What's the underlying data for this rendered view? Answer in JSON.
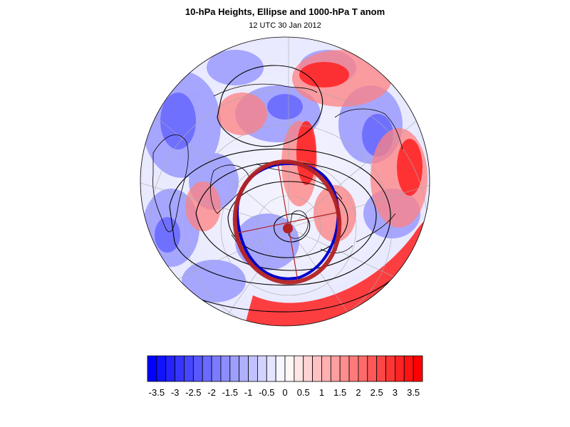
{
  "title": "10-hPa Heights, Ellipse and 1000-hPa T anom",
  "subtitle": "12 UTC 30 Jan 2012",
  "colorbar": {
    "min": -3.75,
    "max": 3.75,
    "step": 0.25,
    "label_values": [
      -3.5,
      -3,
      -2.5,
      -2,
      -1.5,
      -1,
      -0.5,
      0,
      0.5,
      1,
      1.5,
      2,
      2.5,
      3,
      3.5
    ],
    "labels": [
      "-3.5",
      "-3",
      "-2.5",
      "-2",
      "-1.5",
      "-1",
      "-0.5",
      "0",
      "0.5",
      "1",
      "1.5",
      "2",
      "2.5",
      "3",
      "3.5"
    ],
    "negative_color": "#0000ff",
    "neutral_color": "#ffffff",
    "positive_color": "#ff0000"
  },
  "map": {
    "projection": "orthographic north-polar",
    "ellipse_color": "#b22222",
    "ellipse_centroid_color": "#b22222",
    "vortex_edge_color": "#0000cc",
    "height_contour_color": "#000000",
    "graticule_color": "#aaaaaa",
    "coastline_color": "#000000"
  }
}
